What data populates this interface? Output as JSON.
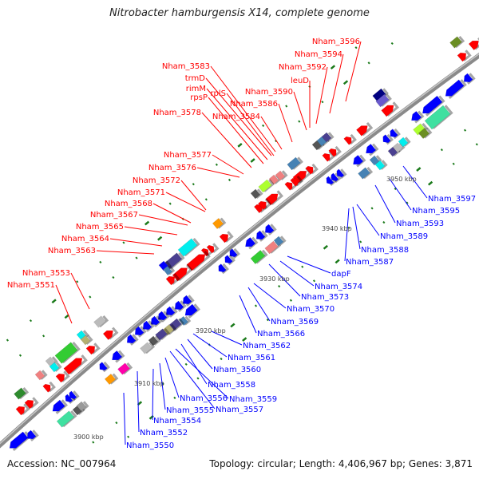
{
  "title": "Nitrobacter hamburgensis X14, complete genome",
  "footer": {
    "accession": "Accession: NC_007964",
    "topology": "Topology: circular; Length: 4,406,967 bp; Genes: 3,871"
  },
  "kbp_ticks": [
    "3900 kbp",
    "3910 kbp",
    "3920 kbp",
    "3930 kbp",
    "3940 kbp",
    "3950 kbp"
  ],
  "forward_labels": [
    "Nham_3596",
    "Nham_3594",
    "Nham_3592",
    "leuD",
    "Nham_3590",
    "Nham_3586",
    "Nham_3584",
    "Nham_3583",
    "trmD",
    "rimM",
    "rplS",
    "rpsP",
    "Nham_3578",
    "Nham_3577",
    "Nham_3576",
    "Nham_3572",
    "Nham_3571",
    "Nham_3568",
    "Nham_3567",
    "Nham_3565",
    "Nham_3564",
    "Nham_3563",
    "Nham_3553",
    "Nham_3551"
  ],
  "reverse_labels": [
    "Nham_3597",
    "Nham_3595",
    "Nham_3593",
    "Nham_3589",
    "Nham_3588",
    "Nham_3587",
    "dapF",
    "Nham_3574",
    "Nham_3573",
    "Nham_3570",
    "Nham_3569",
    "Nham_3566",
    "Nham_3562",
    "Nham_3561",
    "Nham_3560",
    "Nham_3558",
    "Nham_3559",
    "Nham_3556",
    "Nham_3557",
    "Nham_3555",
    "Nham_3554",
    "Nham_3552",
    "Nham_3550"
  ],
  "colors": {
    "forward": "#ff0000",
    "reverse": "#0000ff",
    "backbone": "#888888",
    "tick": "#1a7a1a"
  }
}
